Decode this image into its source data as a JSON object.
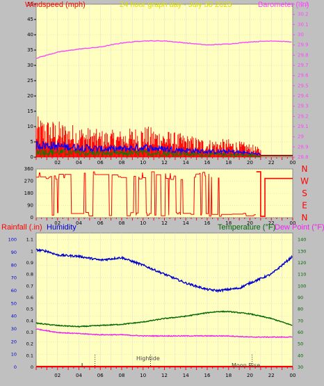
{
  "top": {
    "title": "24 hour graph day - July 30 2023",
    "left_label": "Windspeed (mph)",
    "right_label": "Barometer (.in)",
    "left_ticks": [
      "0",
      "5",
      "10",
      "15",
      "20",
      "25",
      "30",
      "35",
      "40",
      "45",
      "50"
    ],
    "right_ticks": [
      "28.8",
      "28.9",
      "29",
      "29.1",
      "29.2",
      "29.3",
      "29.4",
      "29.5",
      "29.6",
      "29.7",
      "29.8",
      "29.9",
      "30",
      "30.1",
      "30.2",
      "30.3"
    ],
    "x_ticks": [
      "02",
      "04",
      "06",
      "08",
      "10",
      "12",
      "14",
      "16",
      "18",
      "20",
      "22",
      "00"
    ]
  },
  "mid": {
    "left_ticks": [
      "0",
      "90",
      "180",
      "270",
      "360"
    ],
    "right_letters": [
      "N",
      "W",
      "S",
      "E",
      "N"
    ],
    "x_ticks": [
      "02",
      "04",
      "06",
      "08",
      "10",
      "12",
      "14",
      "16",
      "18",
      "20",
      "22",
      "00"
    ]
  },
  "bottom": {
    "left_label_a": "Rainfall (.in)",
    "left_label_b": "Humidity",
    "right_label_a": "Temperature (°F)",
    "right_label_b": "Dew Point (°F)",
    "rain_ticks": [
      "0",
      "0.1",
      "0.2",
      "0.3",
      "0.4",
      "0.5",
      "0.6",
      "0.7",
      "0.8",
      "0.9",
      "1",
      "1.1"
    ],
    "hum_ticks": [
      "0",
      "10",
      "20",
      "30",
      "40",
      "50",
      "60",
      "70",
      "80",
      "90",
      "100"
    ],
    "right_ticks": [
      "30",
      "40",
      "50",
      "60",
      "70",
      "80",
      "90",
      "100",
      "110",
      "120",
      "130",
      "140"
    ],
    "x_ticks": [
      "02",
      "04",
      "06",
      "08",
      "10",
      "12",
      "14",
      "16",
      "18",
      "20",
      "22",
      "00"
    ],
    "annotations": [
      "Hightide",
      "Moon Rise"
    ]
  },
  "colors": {
    "plot_bg": "#ffffc0",
    "windspeed": "#ff0000",
    "wind_avg": "#0000ff",
    "wind_gust": "#008000",
    "barometer": "#ff44ff",
    "direction": "#ff0000",
    "humidity": "#0000cc",
    "temperature": "#006600",
    "dewpoint": "#ee22ee"
  },
  "chart_data": [
    {
      "type": "line",
      "title": "24 hour graph day - July 30 2023",
      "series": [
        {
          "name": "Windspeed (mph)",
          "x": [
            0,
            2,
            4,
            6,
            8,
            10,
            12,
            14,
            16,
            18,
            20,
            21
          ],
          "values": [
            9,
            8,
            7,
            6,
            6,
            7,
            6,
            5,
            4,
            4,
            3,
            2
          ]
        },
        {
          "name": "Barometer (.in)",
          "x": [
            0,
            2,
            4,
            6,
            8,
            10,
            12,
            14,
            16,
            18,
            20,
            22,
            24
          ],
          "values": [
            29.77,
            29.83,
            29.86,
            29.88,
            29.92,
            29.94,
            29.94,
            29.92,
            29.9,
            29.91,
            29.93,
            29.94,
            29.93
          ]
        }
      ],
      "xlim": [
        0,
        24
      ],
      "ylim_left": [
        0,
        50
      ],
      "ylim_right": [
        28.8,
        30.3
      ]
    },
    {
      "type": "scatter",
      "title": "",
      "series": [
        {
          "name": "",
          "x": [
            0,
            2,
            4,
            6,
            8,
            10,
            12,
            14,
            16,
            18,
            20,
            21,
            24
          ],
          "values": [
            300,
            290,
            300,
            280,
            300,
            290,
            300,
            290,
            290,
            300,
            300,
            20,
            290
          ]
        }
      ],
      "xlim": [
        0,
        24
      ],
      "ylim": [
        0,
        360
      ]
    },
    {
      "type": "line",
      "title": "",
      "series": [
        {
          "name": "Humidity",
          "x": [
            0,
            1,
            2,
            4,
            6,
            8,
            10,
            12,
            14,
            16,
            17,
            18,
            19,
            20,
            22,
            24
          ],
          "values": [
            92,
            91,
            88,
            87,
            84,
            86,
            80,
            73,
            66,
            61,
            60,
            61,
            62,
            66,
            73,
            87
          ]
        },
        {
          "name": "Temperature (°F)",
          "x": [
            0,
            2,
            4,
            6,
            8,
            10,
            12,
            14,
            16,
            17,
            18,
            20,
            22,
            24
          ],
          "values": [
            68,
            66,
            65,
            66,
            67,
            69,
            72,
            74,
            77,
            78,
            78,
            76,
            72,
            66
          ]
        },
        {
          "name": "Dew Point (°F)",
          "x": [
            0,
            2,
            4,
            6,
            8,
            10,
            12,
            14,
            16,
            18,
            20,
            22,
            24
          ],
          "values": [
            63,
            60,
            59,
            58,
            58,
            57,
            57,
            57,
            57,
            57,
            56,
            56,
            56
          ]
        }
      ],
      "xlim": [
        0,
        24
      ],
      "ylim_left": [
        0,
        1.1
      ],
      "ylim_humidity": [
        0,
        100
      ],
      "ylim_right": [
        30,
        140
      ]
    }
  ]
}
